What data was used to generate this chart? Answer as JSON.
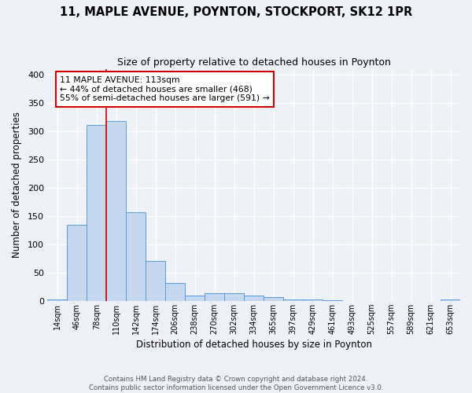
{
  "title": "11, MAPLE AVENUE, POYNTON, STOCKPORT, SK12 1PR",
  "subtitle": "Size of property relative to detached houses in Poynton",
  "xlabel": "Distribution of detached houses by size in Poynton",
  "ylabel": "Number of detached properties",
  "bin_labels": [
    "14sqm",
    "46sqm",
    "78sqm",
    "110sqm",
    "142sqm",
    "174sqm",
    "206sqm",
    "238sqm",
    "270sqm",
    "302sqm",
    "334sqm",
    "365sqm",
    "397sqm",
    "429sqm",
    "461sqm",
    "493sqm",
    "525sqm",
    "557sqm",
    "589sqm",
    "621sqm",
    "653sqm"
  ],
  "bar_values": [
    3,
    135,
    312,
    318,
    157,
    71,
    32,
    10,
    13,
    13,
    9,
    6,
    3,
    2,
    1,
    0,
    0,
    0,
    0,
    0,
    2
  ],
  "bar_color": "#c5d8f0",
  "bar_edgecolor": "#5b9bd5",
  "ylim": [
    0,
    410
  ],
  "yticks": [
    0,
    50,
    100,
    150,
    200,
    250,
    300,
    350,
    400
  ],
  "vline_bin_index": 3,
  "annotation_line1": "11 MAPLE AVENUE: 113sqm",
  "annotation_line2": "← 44% of detached houses are smaller (468)",
  "annotation_line3": "55% of semi-detached houses are larger (591) →",
  "annotation_box_facecolor": "#ffffff",
  "annotation_box_edgecolor": "#cc0000",
  "vline_color": "#cc0000",
  "background_color": "#eef2f8",
  "grid_color": "#ffffff",
  "footer_line1": "Contains HM Land Registry data © Crown copyright and database right 2024.",
  "footer_line2": "Contains public sector information licensed under the Open Government Licence v3.0."
}
